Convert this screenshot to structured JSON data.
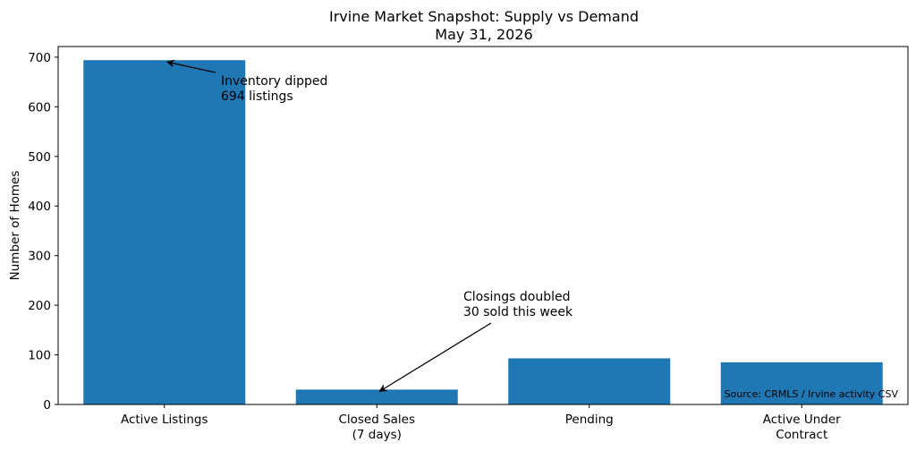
{
  "chart_data": {
    "type": "bar",
    "title": "Irvine Market Snapshot: Supply vs Demand",
    "subtitle": "May 31, 2026",
    "xlabel": "",
    "ylabel": "Number of Homes",
    "categories": [
      [
        "Active Listings"
      ],
      [
        "Closed Sales",
        "(7 days)"
      ],
      [
        "Pending"
      ],
      [
        "Active Under",
        "Contract"
      ]
    ],
    "values": [
      694,
      30,
      93,
      85
    ],
    "ylim": [
      0,
      720
    ],
    "yticks": [
      0,
      100,
      200,
      300,
      400,
      500,
      600,
      700
    ],
    "bar_color": "#1f77b4",
    "grid": false,
    "annotations": [
      {
        "lines": [
          "Inventory dipped",
          "694 listings"
        ],
        "target_category": 0,
        "target_value": 694
      },
      {
        "lines": [
          "Closings doubled",
          "30 sold this week"
        ],
        "target_category": 1,
        "target_value": 30
      }
    ],
    "source_note": "Source: CRMLS / Irvine activity CSV"
  }
}
